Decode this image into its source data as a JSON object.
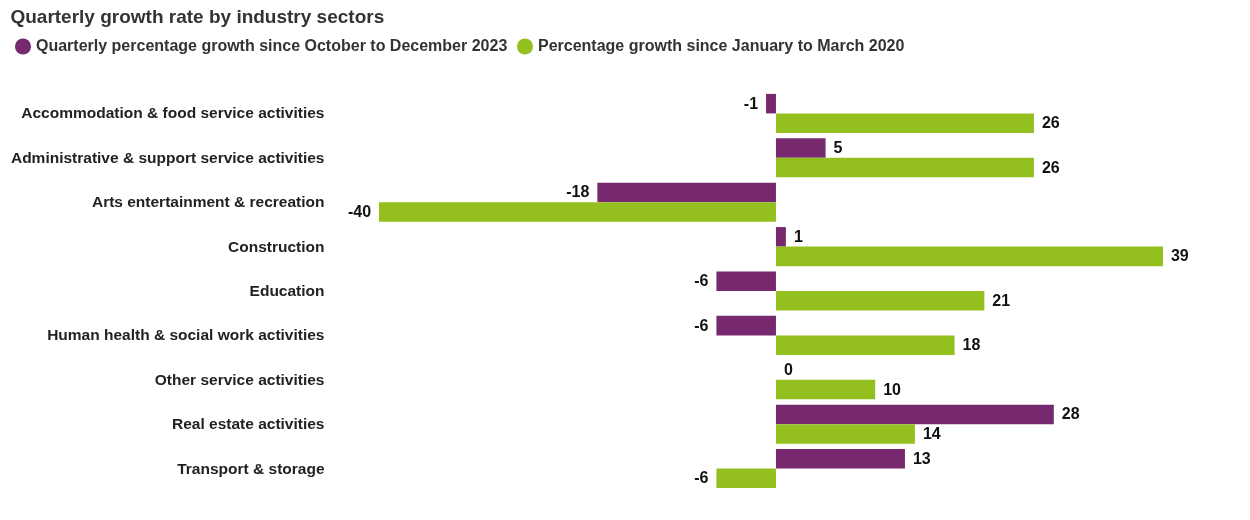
{
  "chart_data": {
    "type": "bar",
    "orientation": "horizontal",
    "title": "Quarterly growth rate by industry sectors",
    "categories": [
      "Accommodation & food service activities",
      "Administrative & support service activities",
      "Arts entertainment & recreation",
      "Construction",
      "Education",
      "Human health & social work activities",
      "Other service activities",
      "Real estate activities",
      "Transport & storage"
    ],
    "series": [
      {
        "name": "Quarterly percentage growth since October to December 2023",
        "color": "#76296f",
        "values": [
          -1,
          5,
          -18,
          1,
          -6,
          -6,
          0,
          28,
          13
        ]
      },
      {
        "name": "Percentage growth since January to March 2020",
        "color": "#93c01f",
        "values": [
          26,
          26,
          -40,
          39,
          21,
          18,
          10,
          14,
          -6
        ]
      }
    ],
    "data_labels": true,
    "legend": "top left"
  }
}
